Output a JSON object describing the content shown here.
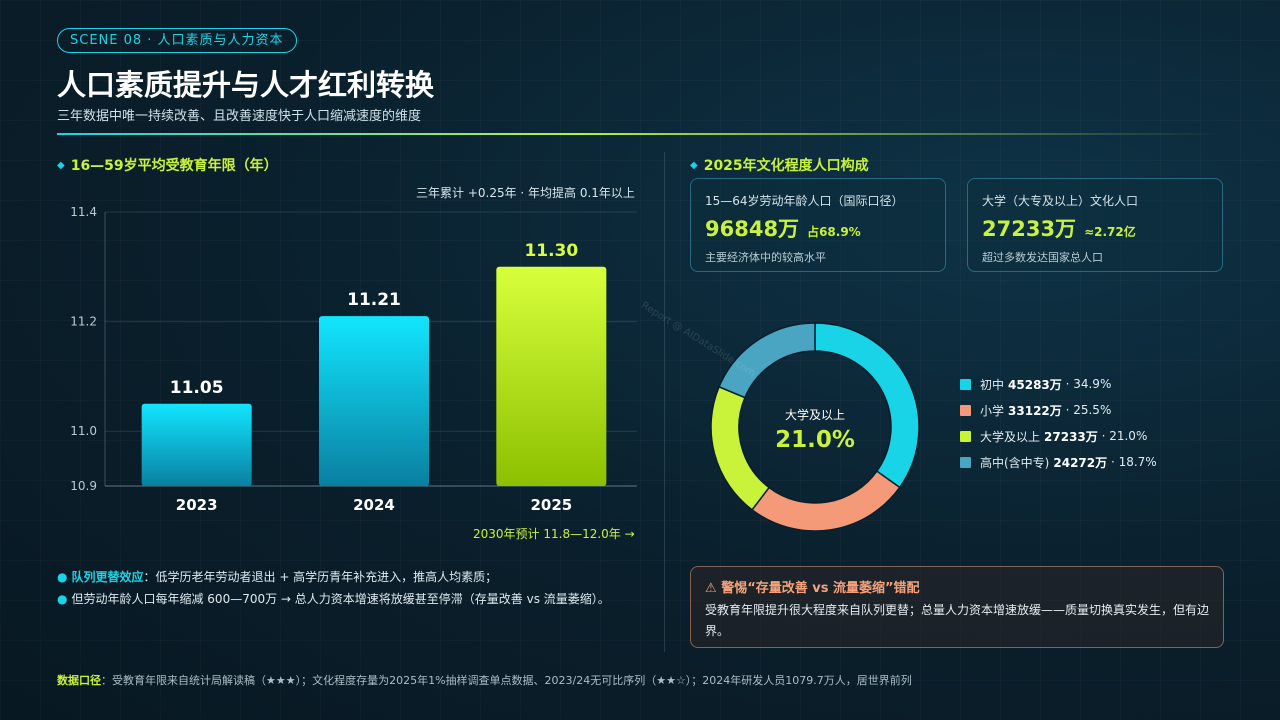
{
  "header": {
    "scene_tag": "SCENE 08 · 人口素质与人力资本",
    "title": "人口素质提升与人才红利转换",
    "subtitle": "三年数据中唯一持续改善、且改善速度快于人口缩减速度的维度"
  },
  "left": {
    "section_title": "16—59岁平均受教育年限（年）",
    "note": "三年累计 +0.25年 · 年均提高 0.1年以上",
    "forecast": "2030年预计 11.8—12.0年 →",
    "bullets": [
      {
        "emph": "队列更替效应",
        "text": "：低学历老年劳动者退出 + 高学历青年补充进入，推高人均素质；"
      },
      {
        "emph": "",
        "text": "但劳动年龄人口每年缩减 600—700万 → 总人力资本增速将放缓甚至停滞（存量改善 vs 流量萎缩）。"
      }
    ]
  },
  "right": {
    "section_title": "2025年文化程度人口构成",
    "kpis": [
      {
        "label": "15—64岁劳动年龄人口（国际口径）",
        "value": "96848万",
        "sub": "占68.9%",
        "desc": "主要经济体中的较高水平"
      },
      {
        "label": "大学（大专及以上）文化人口",
        "value": "27233万",
        "sub": "≈2.72亿",
        "desc": "超过多数发达国家总人口"
      }
    ],
    "donut_center_label": "大学及以上",
    "donut_center_value": "21.0%",
    "legend": [
      {
        "name": "初中",
        "value": "45283万",
        "pct": "· 34.9%"
      },
      {
        "name": "小学",
        "value": "33122万",
        "pct": "· 25.5%"
      },
      {
        "name": "大学及以上",
        "value": "27233万",
        "pct": "· 21.0%"
      },
      {
        "name": "高中(含中专)",
        "value": "24272万",
        "pct": "· 18.7%"
      }
    ],
    "warning": {
      "icon": "warning-triangle-icon",
      "title": "警惕“存量改善 vs 流量萎缩”错配",
      "body": "受教育年限提升很大程度来自队列更替；总量人力资本增速放缓——质量切换真实发生，但有边界。"
    }
  },
  "footer": {
    "label": "数据口径",
    "text": "：受教育年限来自统计局解读稿（★★★）；文化程度存量为2025年1%抽样调查单点数据、2023/24无可比序列（★★☆）；2024年研发人员1079.7万人，居世界前列"
  },
  "watermark": "Report @ AIDataSlide.com",
  "colors": {
    "cyan": "#19d3e6",
    "lime": "#c9f23a",
    "salmon": "#f59a78",
    "steel": "#4aa5c2"
  },
  "chart_data": [
    {
      "type": "bar",
      "title": "16—59岁平均受教育年限（年）",
      "categories": [
        "2023",
        "2024",
        "2025"
      ],
      "values": [
        11.05,
        11.21,
        11.3
      ],
      "data_labels": [
        "11.05",
        "11.21",
        "11.30"
      ],
      "ylim": [
        10.9,
        11.4
      ],
      "yticks": [
        "10.9",
        "11.0",
        "11.2",
        "11.4"
      ],
      "ytick_values": [
        10.9,
        11.0,
        11.2,
        11.4
      ],
      "grid": true
    },
    {
      "type": "pie",
      "title": "2025年文化程度人口构成",
      "labels": [
        "初中",
        "小学",
        "大学及以上",
        "高中(含中专)"
      ],
      "values": [
        34.9,
        25.5,
        21.0,
        18.7
      ],
      "counts_wan": [
        45283,
        33122,
        27233,
        24272
      ],
      "colors": [
        "#19d3e6",
        "#f59a78",
        "#c9f23a",
        "#4aa5c2"
      ],
      "donut": true,
      "legend": "right"
    }
  ]
}
